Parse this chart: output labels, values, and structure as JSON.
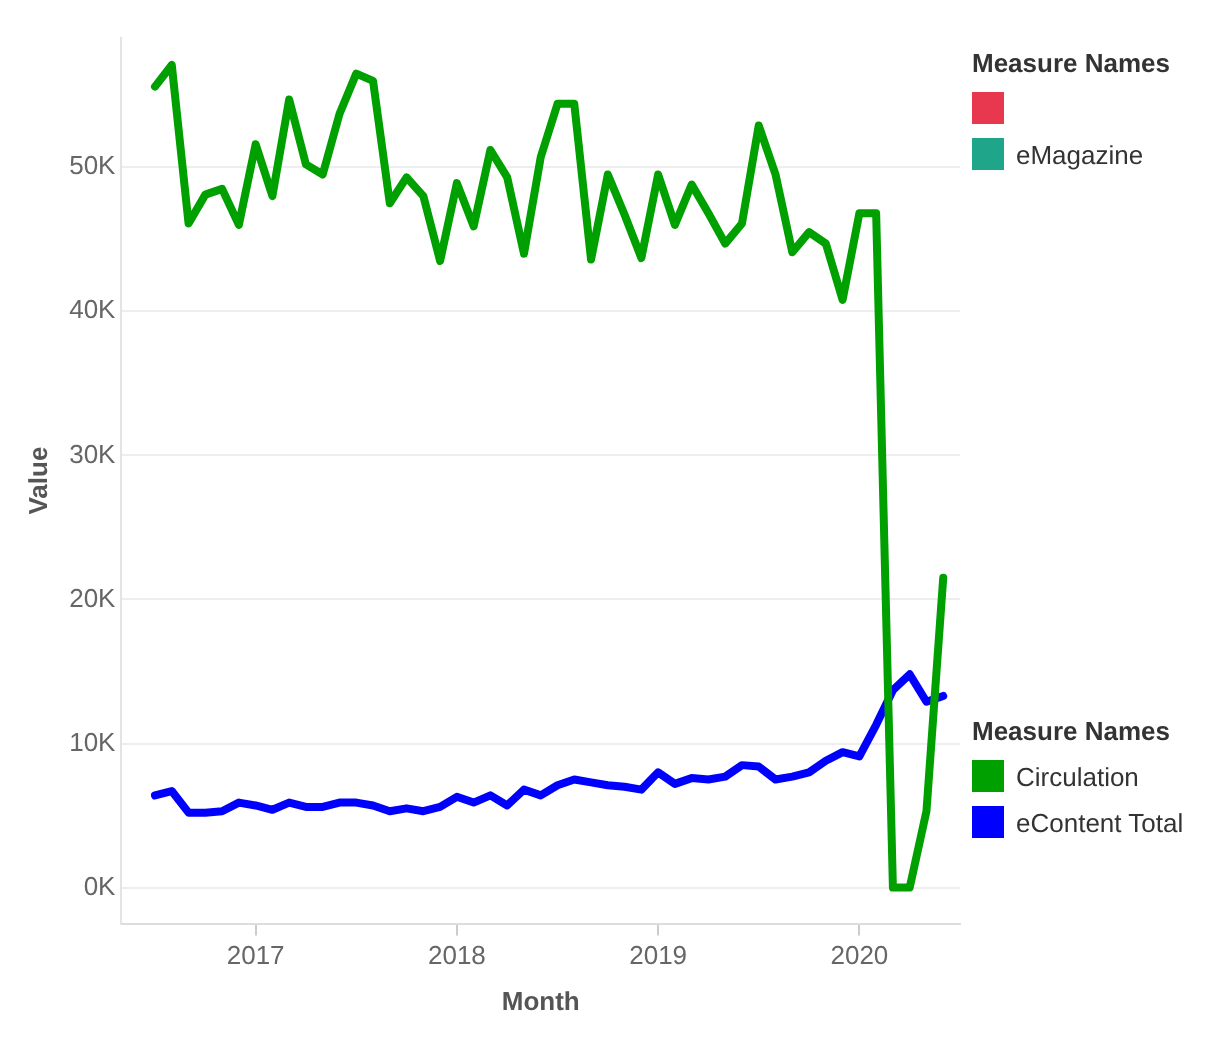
{
  "chart_data": {
    "type": "line",
    "xlabel": "Month",
    "ylabel": "Value",
    "legend_title": "Measure Names",
    "legend": "right",
    "x": [
      "2016-07",
      "2016-08",
      "2016-09",
      "2016-10",
      "2016-11",
      "2016-12",
      "2017-01",
      "2017-02",
      "2017-03",
      "2017-04",
      "2017-05",
      "2017-06",
      "2017-07",
      "2017-08",
      "2017-09",
      "2017-10",
      "2017-11",
      "2017-12",
      "2018-01",
      "2018-02",
      "2018-03",
      "2018-04",
      "2018-05",
      "2018-06",
      "2018-07",
      "2018-08",
      "2018-09",
      "2018-10",
      "2018-11",
      "2018-12",
      "2019-01",
      "2019-02",
      "2019-03",
      "2019-04",
      "2019-05",
      "2019-06",
      "2019-07",
      "2019-08",
      "2019-09",
      "2019-10",
      "2019-11",
      "2019-12",
      "2020-01",
      "2020-02",
      "2020-03",
      "2020-04",
      "2020-05",
      "2020-06"
    ],
    "series": [
      {
        "color": "#e8384f",
        "values": [
          null,
          null,
          null,
          null,
          null,
          null,
          null,
          null,
          null,
          null,
          null,
          null,
          null,
          null,
          null,
          null,
          null,
          null,
          null,
          null,
          null,
          null,
          null,
          null,
          null,
          null,
          null,
          null,
          null,
          null,
          null,
          null,
          null,
          null,
          null,
          null,
          null,
          null,
          null,
          null,
          null,
          null,
          null,
          null,
          null,
          null,
          null,
          null
        ]
      },
      {
        "name": "eMagazine",
        "color": "#1fa58a",
        "values": [
          null,
          null,
          null,
          null,
          null,
          null,
          null,
          null,
          null,
          null,
          null,
          null,
          null,
          null,
          null,
          null,
          null,
          null,
          null,
          null,
          null,
          null,
          null,
          null,
          null,
          null,
          null,
          null,
          null,
          null,
          null,
          null,
          null,
          null,
          null,
          null,
          null,
          null,
          null,
          null,
          null,
          null,
          null,
          null,
          null,
          null,
          null,
          null
        ]
      },
      {
        "name": "Circulation",
        "color": "#00a000",
        "values": [
          55600,
          57100,
          46100,
          48100,
          48500,
          46000,
          51600,
          48000,
          54700,
          50200,
          49500,
          53700,
          56500,
          56000,
          47500,
          49300,
          48000,
          43500,
          48900,
          45900,
          51200,
          49300,
          44000,
          50700,
          54400,
          54400,
          43600,
          49500,
          46700,
          43700,
          49500,
          46000,
          48800,
          46800,
          44700,
          46100,
          52900,
          49500,
          44100,
          45500,
          44700,
          40800,
          46800,
          46800,
          0,
          0,
          5300,
          21500
        ]
      },
      {
        "name": "eContent Total",
        "color": "#0000ff",
        "values": [
          6400,
          6700,
          5200,
          5200,
          5300,
          5900,
          5700,
          5400,
          5900,
          5600,
          5600,
          5900,
          5900,
          5700,
          5300,
          5500,
          5300,
          5600,
          6300,
          5900,
          6400,
          5700,
          6800,
          6400,
          7100,
          7500,
          7300,
          7100,
          7000,
          6800,
          8000,
          7200,
          7600,
          7500,
          7700,
          8500,
          8400,
          7500,
          7700,
          8000,
          8800,
          9400,
          9100,
          11300,
          13700,
          14800,
          12900,
          13300
        ]
      }
    ],
    "xlim": [
      "2016-05",
      "2020-07"
    ],
    "xticks": [
      "2017",
      "2018",
      "2019",
      "2020"
    ],
    "ylim": [
      -2500,
      59000
    ],
    "yticks": [
      {
        "value": 0,
        "label": "0K"
      },
      {
        "value": 10000,
        "label": "10K"
      },
      {
        "value": 20000,
        "label": "20K"
      },
      {
        "value": 30000,
        "label": "30K"
      },
      {
        "value": 40000,
        "label": "40K"
      },
      {
        "value": 50000,
        "label": "50K"
      }
    ],
    "grid": "y",
    "marker": "none",
    "line_style": "solid"
  }
}
